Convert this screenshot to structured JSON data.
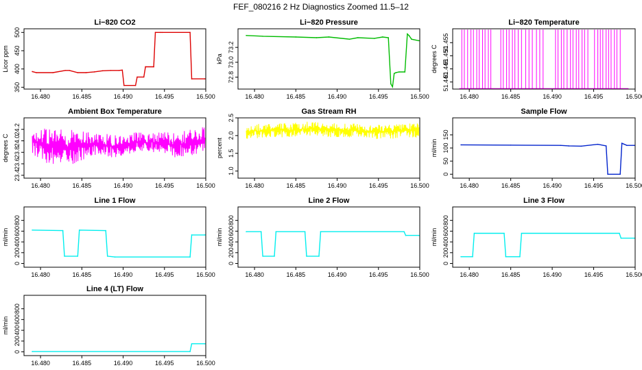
{
  "figure": {
    "title": "FEF_080216  2 Hz Diagnostics Zoomed 11.5–12"
  },
  "chart_data": [
    {
      "type": "line",
      "title": "Li−820 CO2",
      "ylabel": "Licor ppm",
      "xlim": [
        16.478,
        16.5
      ],
      "ylim": [
        345,
        510
      ],
      "xticks": [
        16.48,
        16.485,
        16.49,
        16.495,
        16.5
      ],
      "xtick_labels": [
        "16.480",
        "16.485",
        "16.490",
        "16.495",
        "16.500"
      ],
      "yticks": [
        350,
        400,
        450,
        500
      ],
      "ytick_labels": [
        "350",
        "400",
        "450",
        "500"
      ],
      "color": "#dd0000",
      "style": "line",
      "x": [
        16.479,
        16.4795,
        16.4815,
        16.483,
        16.4835,
        16.4845,
        16.4855,
        16.4865,
        16.4875,
        16.4885,
        16.4895,
        16.4899,
        16.4901,
        16.4915,
        16.4917,
        16.4925,
        16.4927,
        16.4937,
        16.4939,
        16.4945,
        16.4947,
        16.4981,
        16.4983,
        16.4999
      ],
      "y": [
        393,
        390,
        390,
        396,
        396,
        390,
        390,
        392,
        395,
        396,
        396,
        397,
        355,
        355,
        378,
        378,
        406,
        406,
        500,
        500,
        500,
        500,
        373,
        373
      ]
    },
    {
      "type": "line",
      "title": "Li−820 Pressure",
      "ylabel": "kPa",
      "xlim": [
        16.478,
        16.5
      ],
      "ylim": [
        72.64,
        73.45
      ],
      "xticks": [
        16.48,
        16.485,
        16.49,
        16.495,
        16.5
      ],
      "xtick_labels": [
        "16.480",
        "16.485",
        "16.490",
        "16.495",
        "16.500"
      ],
      "yticks": [
        72.8,
        73.0,
        73.2
      ],
      "ytick_labels": [
        "72.8",
        "73.0",
        "73.2"
      ],
      "color": "#00bb00",
      "style": "line",
      "x": [
        16.479,
        16.481,
        16.485,
        16.4875,
        16.489,
        16.4915,
        16.4925,
        16.4945,
        16.4955,
        16.4962,
        16.4965,
        16.4967,
        16.4969,
        16.4971,
        16.4975,
        16.4982,
        16.4985,
        16.4987,
        16.499,
        16.4999
      ],
      "y": [
        73.36,
        73.35,
        73.34,
        73.33,
        73.34,
        73.31,
        73.33,
        73.32,
        73.34,
        73.33,
        72.71,
        72.67,
        72.85,
        72.86,
        72.87,
        72.87,
        73.38,
        73.36,
        73.31,
        73.29
      ]
    },
    {
      "type": "line",
      "title": "Li−820 Temperature",
      "ylabel": "degrees C",
      "xlim": [
        16.478,
        16.5
      ],
      "ylim": [
        51.4373,
        51.4603
      ],
      "xticks": [
        16.48,
        16.485,
        16.49,
        16.495,
        16.5
      ],
      "xtick_labels": [
        "16.480",
        "16.485",
        "16.490",
        "16.495",
        "16.500"
      ],
      "yticks": [
        51.44,
        51.445,
        51.45,
        51.455
      ],
      "ytick_labels": [
        "51.440",
        "51.445",
        "51.450",
        "51.455"
      ],
      "color": "#ff00ff",
      "style": "spikes",
      "baseline": 51.4375,
      "x": [
        16.4791,
        16.4794,
        16.4798,
        16.4802,
        16.4805,
        16.4809,
        16.4812,
        16.4816,
        16.4819,
        16.4823,
        16.4826,
        16.4838,
        16.4841,
        16.4845,
        16.4848,
        16.4852,
        16.4855,
        16.4859,
        16.4863,
        16.4868,
        16.4872,
        16.4876,
        16.4881,
        16.4885,
        16.4889,
        16.4904,
        16.4907,
        16.4911,
        16.4914,
        16.4918,
        16.4922,
        16.4925,
        16.4929,
        16.4932,
        16.4936,
        16.4939,
        16.4943,
        16.4951,
        16.4955,
        16.4958,
        16.4961,
        16.4965,
        16.4968,
        16.4971,
        16.4975,
        16.4978,
        16.4982
      ],
      "y": [
        51.46,
        51.46,
        51.46,
        51.46,
        51.46,
        51.46,
        51.46,
        51.46,
        51.46,
        51.46,
        51.46,
        51.46,
        51.46,
        51.46,
        51.46,
        51.46,
        51.46,
        51.46,
        51.46,
        51.46,
        51.46,
        51.46,
        51.46,
        51.46,
        51.46,
        51.46,
        51.46,
        51.46,
        51.46,
        51.46,
        51.46,
        51.46,
        51.46,
        51.46,
        51.46,
        51.46,
        51.46,
        51.46,
        51.46,
        51.46,
        51.46,
        51.46,
        51.46,
        51.46,
        51.46,
        51.46,
        51.46
      ]
    },
    {
      "type": "line",
      "title": "Ambient Box Temperature",
      "ylabel": "degrees C",
      "xlim": [
        16.478,
        16.5
      ],
      "ylim": [
        23.35,
        24.4
      ],
      "xticks": [
        16.48,
        16.485,
        16.49,
        16.495,
        16.5
      ],
      "xtick_labels": [
        "16.480",
        "16.485",
        "16.490",
        "16.495",
        "16.500"
      ],
      "yticks": [
        23.4,
        23.6,
        23.8,
        24.0,
        24.2
      ],
      "ytick_labels": [
        "23.4",
        "23.6",
        "23.8",
        "24.0",
        "24.2"
      ],
      "color": "#ff00ff",
      "style": "band",
      "x": [
        16.479,
        16.4815,
        16.484,
        16.4865,
        16.489,
        16.4915,
        16.494,
        16.4965,
        16.4999
      ],
      "y_low": [
        23.75,
        23.55,
        23.6,
        23.75,
        23.7,
        23.8,
        23.8,
        23.7,
        23.75
      ],
      "y_high": [
        24.25,
        24.2,
        24.2,
        24.15,
        24.1,
        24.15,
        24.15,
        24.15,
        24.25
      ]
    },
    {
      "type": "line",
      "title": "Gas Stream RH",
      "ylabel": "percent",
      "xlim": [
        16.478,
        16.5
      ],
      "ylim": [
        0.8,
        2.5
      ],
      "xticks": [
        16.48,
        16.485,
        16.49,
        16.495,
        16.5
      ],
      "xtick_labels": [
        "16.480",
        "16.485",
        "16.490",
        "16.495",
        "16.500"
      ],
      "yticks": [
        1.0,
        1.5,
        2.0,
        2.5
      ],
      "ytick_labels": [
        "1.0",
        "1.5",
        "2.0",
        "2.5"
      ],
      "color": "#ffff00",
      "style": "band",
      "x": [
        16.479,
        16.4815,
        16.484,
        16.4865,
        16.489,
        16.4915,
        16.494,
        16.4965,
        16.4999
      ],
      "y_low": [
        1.9,
        1.95,
        1.95,
        2.0,
        1.95,
        1.95,
        1.9,
        1.9,
        1.95
      ],
      "y_high": [
        2.3,
        2.35,
        2.35,
        2.4,
        2.35,
        2.35,
        2.3,
        2.35,
        2.35
      ]
    },
    {
      "type": "line",
      "title": "Sample Flow",
      "ylabel": "ml/min",
      "xlim": [
        16.478,
        16.5
      ],
      "ylim": [
        -15,
        215
      ],
      "xticks": [
        16.48,
        16.485,
        16.49,
        16.495,
        16.5
      ],
      "xtick_labels": [
        "16.480",
        "16.485",
        "16.490",
        "16.495",
        "16.500"
      ],
      "yticks": [
        0,
        50,
        100,
        150
      ],
      "ytick_labels": [
        "0",
        "50",
        "100",
        "150"
      ],
      "color": "#0022cc",
      "style": "line",
      "x": [
        16.479,
        16.485,
        16.491,
        16.492,
        16.4935,
        16.4955,
        16.4965,
        16.4967,
        16.4982,
        16.4984,
        16.499,
        16.4999
      ],
      "y": [
        112,
        111,
        110,
        108,
        107,
        114,
        108,
        0,
        0,
        118,
        110,
        110
      ]
    },
    {
      "type": "line",
      "title": "Line 1 Flow",
      "ylabel": "ml/min",
      "xlim": [
        16.478,
        16.5
      ],
      "ylim": [
        -70,
        1050
      ],
      "xticks": [
        16.48,
        16.485,
        16.49,
        16.495,
        16.5
      ],
      "xtick_labels": [
        "16.480",
        "16.485",
        "16.490",
        "16.495",
        "16.500"
      ],
      "yticks": [
        0,
        200,
        400,
        600,
        800
      ],
      "ytick_labels": [
        "0",
        "200",
        "400",
        "600",
        "800"
      ],
      "color": "#00eeee",
      "style": "line",
      "x": [
        16.479,
        16.4827,
        16.4829,
        16.4845,
        16.4847,
        16.4879,
        16.4881,
        16.489,
        16.4981,
        16.4983,
        16.4999
      ],
      "y": [
        620,
        610,
        135,
        135,
        620,
        610,
        135,
        120,
        120,
        530,
        530
      ]
    },
    {
      "type": "line",
      "title": "Line 2 Flow",
      "ylabel": "ml/min",
      "xlim": [
        16.478,
        16.5
      ],
      "ylim": [
        -70,
        1050
      ],
      "xticks": [
        16.48,
        16.485,
        16.49,
        16.495,
        16.5
      ],
      "xtick_labels": [
        "16.480",
        "16.485",
        "16.490",
        "16.495",
        "16.500"
      ],
      "yticks": [
        0,
        200,
        400,
        600,
        800
      ],
      "ytick_labels": [
        "0",
        "200",
        "400",
        "600",
        "800"
      ],
      "color": "#00eeee",
      "style": "line",
      "x": [
        16.479,
        16.4808,
        16.481,
        16.4824,
        16.4826,
        16.4861,
        16.4863,
        16.4878,
        16.488,
        16.4981,
        16.4983,
        16.4999
      ],
      "y": [
        590,
        590,
        135,
        135,
        590,
        590,
        135,
        135,
        590,
        590,
        520,
        520
      ]
    },
    {
      "type": "line",
      "title": "Line 3 Flow",
      "ylabel": "ml/min",
      "xlim": [
        16.478,
        16.5
      ],
      "ylim": [
        -70,
        1050
      ],
      "xticks": [
        16.48,
        16.485,
        16.49,
        16.495,
        16.5
      ],
      "xtick_labels": [
        "16.480",
        "16.485",
        "16.490",
        "16.495",
        "16.500"
      ],
      "yticks": [
        0,
        200,
        400,
        600,
        800
      ],
      "ytick_labels": [
        "0",
        "200",
        "400",
        "600",
        "800"
      ],
      "color": "#00eeee",
      "style": "line",
      "x": [
        16.479,
        16.4804,
        16.4806,
        16.4842,
        16.4844,
        16.4861,
        16.4863,
        16.4981,
        16.4983,
        16.4999
      ],
      "y": [
        125,
        125,
        560,
        560,
        125,
        125,
        560,
        560,
        470,
        470
      ]
    },
    {
      "type": "line",
      "title": "Line 4 (LT) Flow",
      "ylabel": "ml/min",
      "xlim": [
        16.478,
        16.5
      ],
      "ylim": [
        -70,
        1050
      ],
      "xticks": [
        16.48,
        16.485,
        16.49,
        16.495,
        16.5
      ],
      "xtick_labels": [
        "16.480",
        "16.485",
        "16.490",
        "16.495",
        "16.500"
      ],
      "yticks": [
        0,
        200,
        400,
        600,
        800
      ],
      "ytick_labels": [
        "0",
        "200",
        "400",
        "600",
        "800"
      ],
      "color": "#00eeee",
      "style": "line",
      "x": [
        16.479,
        16.4981,
        16.4983,
        16.4999
      ],
      "y": [
        5,
        5,
        150,
        150
      ]
    }
  ]
}
